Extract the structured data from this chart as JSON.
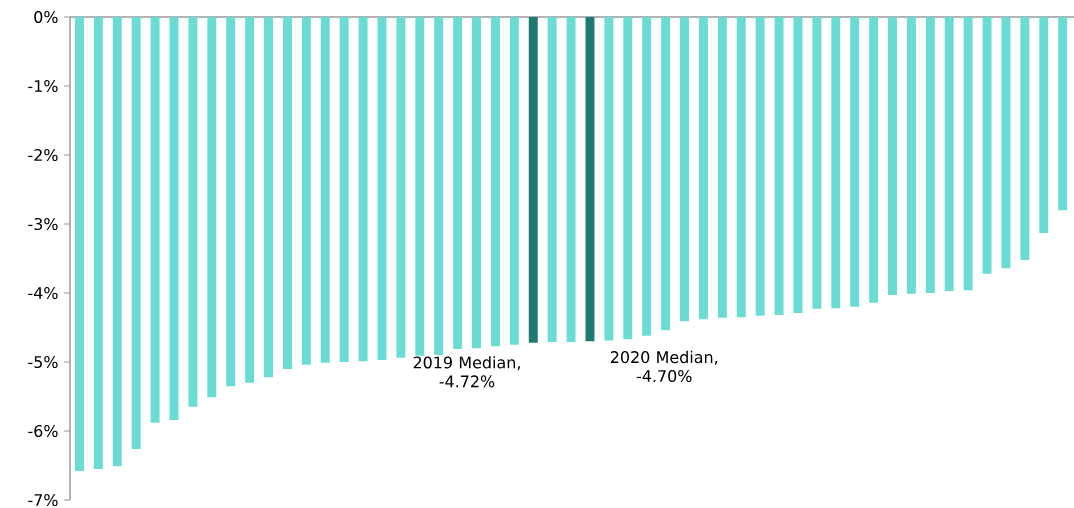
{
  "chart_data": {
    "type": "bar",
    "categories": [
      null,
      null,
      null,
      null,
      null,
      null,
      null,
      null,
      null,
      null,
      null,
      null,
      null,
      null,
      null,
      null,
      null,
      null,
      null,
      null,
      null,
      null,
      null,
      null,
      null,
      null,
      null,
      null,
      null,
      null,
      null,
      null,
      null,
      null,
      null,
      null,
      null,
      null,
      null,
      null,
      null,
      null,
      null,
      null,
      null,
      null,
      null,
      null,
      null,
      null,
      null,
      null,
      null
    ],
    "values": [
      -6.58,
      -6.55,
      -6.51,
      -6.26,
      -5.88,
      -5.84,
      -5.65,
      -5.51,
      -5.35,
      -5.3,
      -5.22,
      -5.1,
      -5.04,
      -5.01,
      -5.0,
      -4.99,
      -4.97,
      -4.94,
      -4.91,
      -4.9,
      -4.81,
      -4.8,
      -4.77,
      -4.75,
      -4.72,
      -4.71,
      -4.71,
      -4.7,
      -4.69,
      -4.67,
      -4.62,
      -4.54,
      -4.41,
      -4.38,
      -4.36,
      -4.35,
      -4.33,
      -4.32,
      -4.29,
      -4.23,
      -4.22,
      -4.2,
      -4.14,
      -4.03,
      -4.01,
      -4.0,
      -3.97,
      -3.96,
      -3.72,
      -3.64,
      -3.52,
      -3.13,
      -2.8
    ],
    "colors": [
      "#6adcd4",
      "#6adcd4",
      "#6adcd4",
      "#6adcd4",
      "#6adcd4",
      "#6adcd4",
      "#6adcd4",
      "#6adcd4",
      "#6adcd4",
      "#6adcd4",
      "#6adcd4",
      "#6adcd4",
      "#6adcd4",
      "#6adcd4",
      "#6adcd4",
      "#6adcd4",
      "#6adcd4",
      "#6adcd4",
      "#6adcd4",
      "#6adcd4",
      "#6adcd4",
      "#6adcd4",
      "#6adcd4",
      "#6adcd4",
      "#1e7a70",
      "#6adcd4",
      "#6adcd4",
      "#1e7a70",
      "#6adcd4",
      "#6adcd4",
      "#6adcd4",
      "#6adcd4",
      "#6adcd4",
      "#6adcd4",
      "#6adcd4",
      "#6adcd4",
      "#6adcd4",
      "#6adcd4",
      "#6adcd4",
      "#6adcd4",
      "#6adcd4",
      "#6adcd4",
      "#6adcd4",
      "#6adcd4",
      "#6adcd4",
      "#6adcd4",
      "#6adcd4",
      "#6adcd4",
      "#6adcd4",
      "#6adcd4",
      "#6adcd4",
      "#6adcd4",
      "#6adcd4"
    ],
    "ylim": [
      -7,
      0
    ],
    "yticks": [
      {
        "value": 0,
        "label": "0%"
      },
      {
        "value": -1,
        "label": "-1%"
      },
      {
        "value": -2,
        "label": "-2%"
      },
      {
        "value": -3,
        "label": "-3%"
      },
      {
        "value": -4,
        "label": "-4%"
      },
      {
        "value": -5,
        "label": "-5%"
      },
      {
        "value": -6,
        "label": "-6%"
      },
      {
        "value": -7,
        "label": "-7%"
      }
    ],
    "annotations": [
      "2019 Median, -4.72%",
      "2020 Median, -4.70%"
    ]
  }
}
